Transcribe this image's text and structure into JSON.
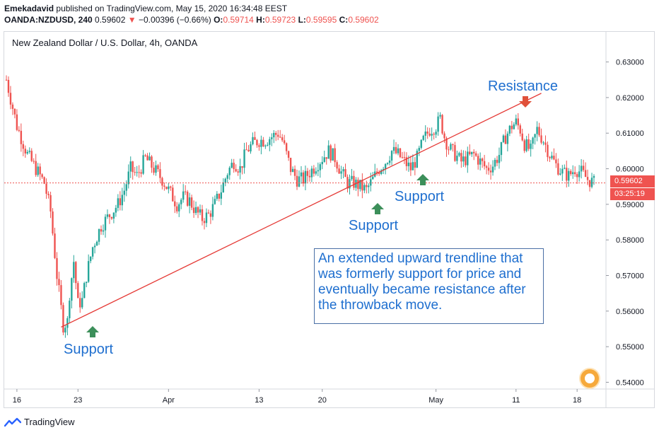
{
  "header": {
    "author": "Emekadavid",
    "published_text": "published on TradingView.com, May 15, 2020 16:34:48 EEST",
    "symbol": "OANDA:NZDUSD, 240",
    "last": "0.59602",
    "change_arrow": "▼",
    "change": "−0.00396 (−0.66%)",
    "open_label": "O:",
    "open": "0.59714",
    "high_label": "H:",
    "high": "0.59723",
    "low_label": "L:",
    "low": "0.59595",
    "close_label": "C:",
    "close": "0.59602"
  },
  "pane_title": "New Zealand Dollar / U.S. Dollar, 4h, OANDA",
  "annotations": {
    "resistance": "Resistance",
    "support_mid_right": "Support",
    "support_mid_left": "Support",
    "support_bottom": "Support",
    "note": "An extended upward trendline that was formerly support for price and eventually became resistance after the throwback move."
  },
  "price_tag": {
    "price": "0.59602",
    "countdown": "03:25:19"
  },
  "footer": {
    "brand": "TradingView",
    "logo_icon": "tradingview-logo-icon"
  },
  "colors": {
    "up": "#26a69a",
    "down": "#ef5350",
    "trendline": "#e53935",
    "text_blue": "#1f6fcf",
    "arrow_green": "#3c8f5a",
    "arrow_red": "#e0513a"
  },
  "chart_data": {
    "type": "candlestick",
    "title": "New Zealand Dollar / U.S. Dollar, 4h, OANDA",
    "y_ticks": [
      0.54,
      0.55,
      0.56,
      0.57,
      0.58,
      0.59,
      0.6,
      0.61,
      0.62,
      0.63
    ],
    "y_tick_labels": [
      "0.54000",
      "0.55000",
      "0.56000",
      "0.57000",
      "0.58000",
      "0.59000",
      "0.60000",
      "0.61000",
      "0.62000",
      "0.63000"
    ],
    "ylim": [
      0.5385,
      0.6335
    ],
    "x_tick_labels": [
      "16",
      "23",
      "Apr",
      "13",
      "20",
      "May",
      "11",
      "18"
    ],
    "x_tick_bar_index": [
      5,
      34,
      77,
      120,
      150,
      204,
      242,
      271
    ],
    "bar_count": 280,
    "current_price": 0.59602,
    "close_path": [
      [
        0,
        0.625
      ],
      [
        5,
        0.612
      ],
      [
        10,
        0.604
      ],
      [
        15,
        0.599
      ],
      [
        18,
        0.596
      ],
      [
        21,
        0.588
      ],
      [
        24,
        0.57
      ],
      [
        27,
        0.556
      ],
      [
        29,
        0.557
      ],
      [
        30,
        0.565
      ],
      [
        32,
        0.574
      ],
      [
        34,
        0.562
      ],
      [
        36,
        0.563
      ],
      [
        38,
        0.57
      ],
      [
        41,
        0.578
      ],
      [
        45,
        0.584
      ],
      [
        49,
        0.587
      ],
      [
        53,
        0.59
      ],
      [
        56,
        0.594
      ],
      [
        59,
        0.6
      ],
      [
        62,
        0.598
      ],
      [
        66,
        0.603
      ],
      [
        70,
        0.6
      ],
      [
        74,
        0.597
      ],
      [
        78,
        0.593
      ],
      [
        81,
        0.59
      ],
      [
        84,
        0.592
      ],
      [
        87,
        0.591
      ],
      [
        90,
        0.588
      ],
      [
        93,
        0.586
      ],
      [
        96,
        0.587
      ],
      [
        99,
        0.59
      ],
      [
        102,
        0.594
      ],
      [
        105,
        0.599
      ],
      [
        108,
        0.602
      ],
      [
        111,
        0.6
      ],
      [
        114,
        0.605
      ],
      [
        117,
        0.607
      ],
      [
        120,
        0.608
      ],
      [
        123,
        0.608
      ],
      [
        126,
        0.609
      ],
      [
        129,
        0.61
      ],
      [
        131,
        0.608
      ],
      [
        133,
        0.604
      ],
      [
        135,
        0.6
      ],
      [
        138,
        0.597
      ],
      [
        141,
        0.597
      ],
      [
        144,
        0.599
      ],
      [
        147,
        0.601
      ],
      [
        150,
        0.603
      ],
      [
        153,
        0.605
      ],
      [
        156,
        0.603
      ],
      [
        159,
        0.599
      ],
      [
        162,
        0.596
      ],
      [
        165,
        0.596
      ],
      [
        168,
        0.595
      ],
      [
        171,
        0.594
      ],
      [
        174,
        0.597
      ],
      [
        177,
        0.6
      ],
      [
        180,
        0.602
      ],
      [
        183,
        0.605
      ],
      [
        186,
        0.604
      ],
      [
        189,
        0.602
      ],
      [
        192,
        0.6
      ],
      [
        195,
        0.603
      ],
      [
        198,
        0.608
      ],
      [
        201,
        0.611
      ],
      [
        204,
        0.612
      ],
      [
        206,
        0.614
      ],
      [
        208,
        0.609
      ],
      [
        210,
        0.606
      ],
      [
        213,
        0.604
      ],
      [
        216,
        0.602
      ],
      [
        219,
        0.603
      ],
      [
        222,
        0.604
      ],
      [
        225,
        0.602
      ],
      [
        228,
        0.6
      ],
      [
        231,
        0.601
      ],
      [
        234,
        0.604
      ],
      [
        237,
        0.609
      ],
      [
        240,
        0.612
      ],
      [
        242,
        0.613
      ],
      [
        244,
        0.611
      ],
      [
        246,
        0.607
      ],
      [
        249,
        0.605
      ],
      [
        252,
        0.611
      ],
      [
        255,
        0.608
      ],
      [
        258,
        0.604
      ],
      [
        261,
        0.601
      ],
      [
        264,
        0.599
      ],
      [
        267,
        0.598
      ],
      [
        270,
        0.6
      ],
      [
        273,
        0.599
      ],
      [
        276,
        0.597
      ],
      [
        279,
        0.596
      ]
    ],
    "trendline": {
      "x_start": 26,
      "y_start": 0.5555,
      "x_end": 254,
      "y_end": 0.6212
    },
    "price_line": 0.59602
  }
}
